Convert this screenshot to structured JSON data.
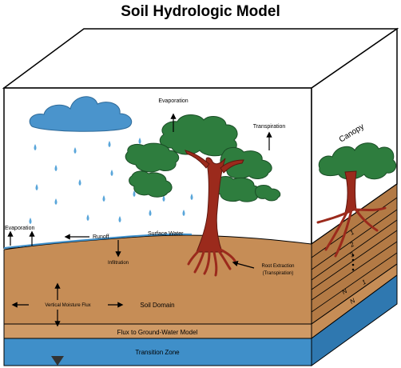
{
  "title": "Soil Hydrologic Model",
  "labels": {
    "evaporation_top": "Evaporation",
    "transpiration": "Transpiration",
    "canopy": "Canopy",
    "evaporation_left": "Evaporation",
    "runoff": "Runoff",
    "surface_water": "Surface Water",
    "infiltration": "Infiltration",
    "root_extraction_line1": "Root Extraction",
    "root_extraction_line2": "(Transpiration)",
    "vertical_moisture_flux": "Vertical Moisture Flux",
    "soil_domain": "Soil Domain",
    "flux_to_groundwater": "Flux to Ground-Water Model",
    "transition_zone": "Transition Zone"
  },
  "layer_numbers": [
    "1",
    "2",
    "3",
    "N",
    "1",
    "N"
  ],
  "colors": {
    "soil": "#C68D56",
    "soil_side": "#B37A45",
    "soil_lower": "#CF9A66",
    "water": "#3F8FC9",
    "water_side": "#2F78B0",
    "cloud": "#4A94CC",
    "rain": "#5AA6DA",
    "foliage": "#2E7D3E",
    "trunk": "#9B2A1C",
    "top_face": "#ffffff"
  }
}
